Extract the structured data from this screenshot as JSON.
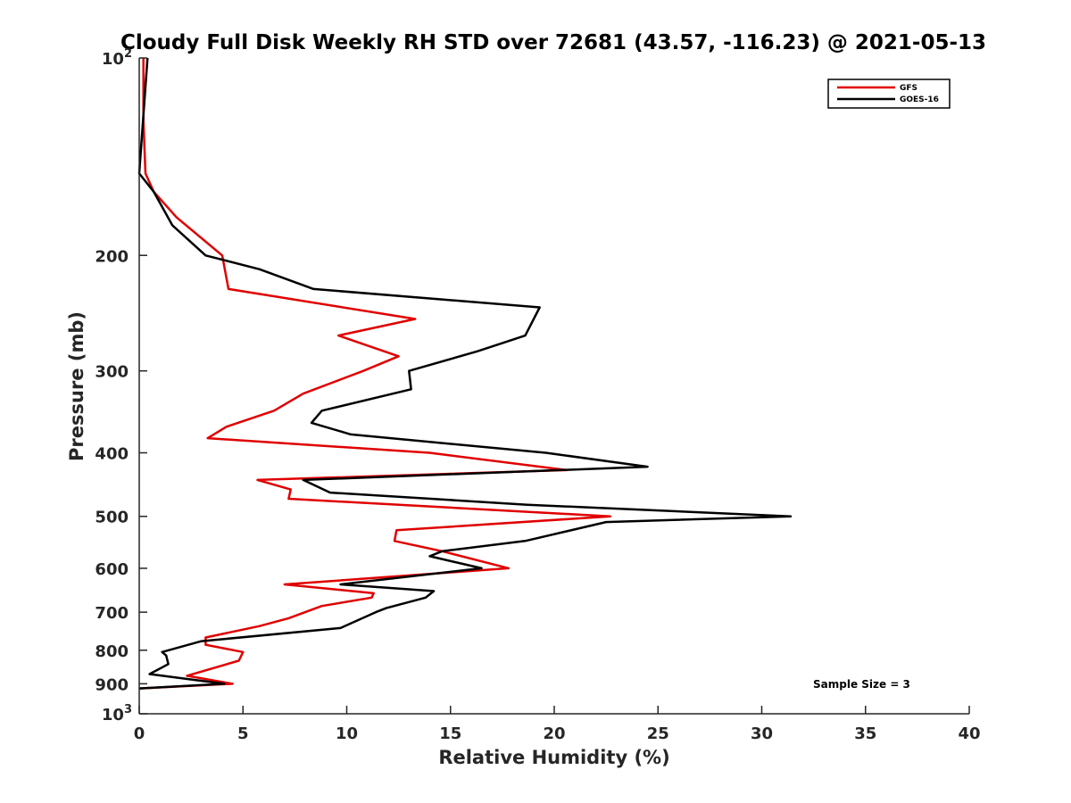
{
  "chart_data": {
    "type": "line",
    "title": "Cloudy Full Disk Weekly RH STD over 72681 (43.57, -116.23) @ 2021-05-13",
    "xlabel": "Relative Humidity (%)",
    "ylabel": "Pressure (mb)",
    "xlim": [
      0,
      40
    ],
    "ylim": [
      100,
      1000
    ],
    "y_scale": "log",
    "y_reversed": true,
    "x_ticks": [
      "0",
      "5",
      "10",
      "15",
      "20",
      "25",
      "30",
      "35",
      "40"
    ],
    "y_ticks": [
      {
        "value": 100,
        "base": "10",
        "exp": "2"
      },
      {
        "value": 200,
        "label": "200"
      },
      {
        "value": 300,
        "label": "300"
      },
      {
        "value": 400,
        "label": "400"
      },
      {
        "value": 500,
        "label": "500"
      },
      {
        "value": 600,
        "label": "600"
      },
      {
        "value": 700,
        "label": "700"
      },
      {
        "value": 800,
        "label": "800"
      },
      {
        "value": 900,
        "label": "900"
      },
      {
        "value": 1000,
        "base": "10",
        "exp": "3"
      }
    ],
    "grid": false,
    "legend_position": "top-right",
    "annotation": "Sample Size = 3",
    "series": [
      {
        "name": "GFS",
        "color": "#e00000",
        "points": [
          [
            0.2,
            100
          ],
          [
            0.2,
            125
          ],
          [
            0.3,
            150
          ],
          [
            0.7,
            160
          ],
          [
            1.8,
            175
          ],
          [
            4.0,
            200
          ],
          [
            4.3,
            225
          ],
          [
            13.3,
            250
          ],
          [
            9.6,
            265
          ],
          [
            12.5,
            285
          ],
          [
            10.8,
            300
          ],
          [
            7.9,
            325
          ],
          [
            6.5,
            345
          ],
          [
            4.2,
            365
          ],
          [
            3.3,
            380
          ],
          [
            14.0,
            400
          ],
          [
            20.6,
            425
          ],
          [
            5.7,
            440
          ],
          [
            7.3,
            455
          ],
          [
            7.2,
            470
          ],
          [
            22.7,
            500
          ],
          [
            12.4,
            525
          ],
          [
            12.3,
            545
          ],
          [
            14.6,
            565
          ],
          [
            17.8,
            600
          ],
          [
            7.0,
            635
          ],
          [
            11.3,
            655
          ],
          [
            11.2,
            665
          ],
          [
            8.8,
            685
          ],
          [
            7.2,
            715
          ],
          [
            5.8,
            735
          ],
          [
            3.2,
            765
          ],
          [
            3.2,
            785
          ],
          [
            5.0,
            805
          ],
          [
            4.8,
            830
          ],
          [
            2.3,
            875
          ],
          [
            4.5,
            900
          ],
          [
            0.0,
            915
          ]
        ]
      },
      {
        "name": "GOES-16",
        "color": "#000000",
        "points": [
          [
            0.4,
            100
          ],
          [
            0.0,
            150
          ],
          [
            0.7,
            160
          ],
          [
            1.6,
            180
          ],
          [
            3.2,
            200
          ],
          [
            5.8,
            210
          ],
          [
            8.4,
            225
          ],
          [
            19.3,
            240
          ],
          [
            18.6,
            265
          ],
          [
            16.3,
            280
          ],
          [
            13.0,
            300
          ],
          [
            13.1,
            320
          ],
          [
            8.8,
            345
          ],
          [
            8.3,
            360
          ],
          [
            10.2,
            375
          ],
          [
            19.6,
            400
          ],
          [
            24.5,
            420
          ],
          [
            7.9,
            440
          ],
          [
            9.2,
            460
          ],
          [
            18.7,
            480
          ],
          [
            31.4,
            500
          ],
          [
            22.5,
            510
          ],
          [
            18.6,
            545
          ],
          [
            14.6,
            565
          ],
          [
            14.0,
            575
          ],
          [
            16.5,
            600
          ],
          [
            9.7,
            635
          ],
          [
            14.2,
            650
          ],
          [
            13.8,
            665
          ],
          [
            11.9,
            690
          ],
          [
            11.4,
            700
          ],
          [
            9.7,
            740
          ],
          [
            3.0,
            775
          ],
          [
            1.1,
            805
          ],
          [
            1.3,
            815
          ],
          [
            1.4,
            840
          ],
          [
            0.5,
            870
          ],
          [
            4.1,
            900
          ],
          [
            0.0,
            915
          ]
        ]
      }
    ]
  }
}
